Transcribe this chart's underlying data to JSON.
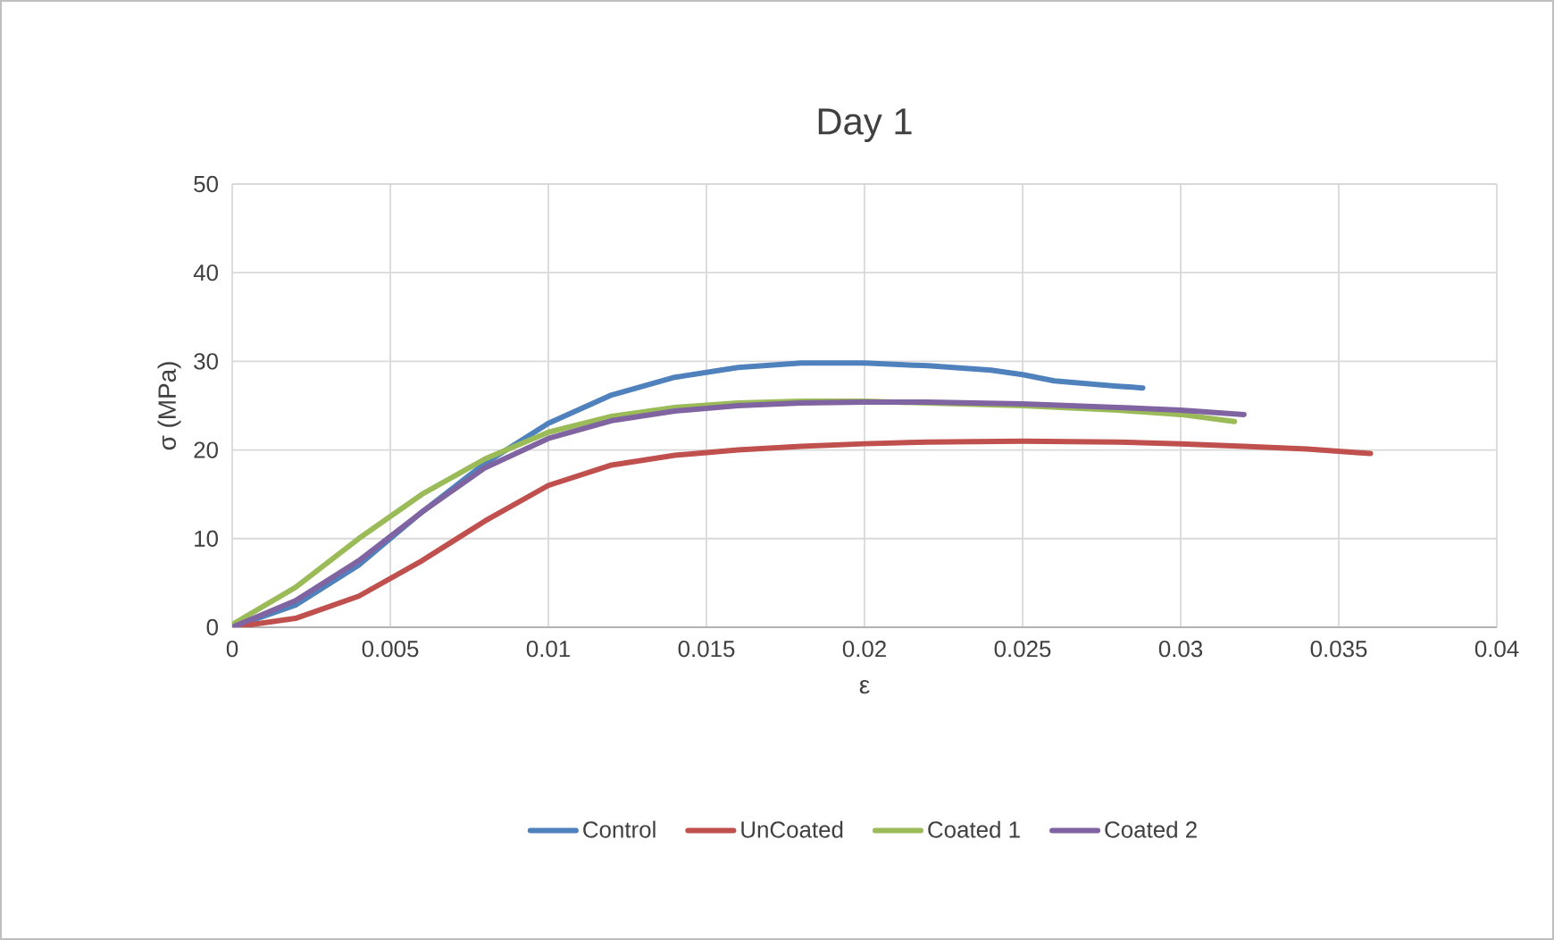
{
  "chart_data": {
    "type": "line",
    "title": "Day 1",
    "xlabel": "ε",
    "ylabel": "σ (MPa)",
    "xlim": [
      0,
      0.04
    ],
    "ylim": [
      0,
      50
    ],
    "xticks": [
      0,
      0.005,
      0.01,
      0.015,
      0.02,
      0.025,
      0.03,
      0.035,
      0.04
    ],
    "yticks": [
      0,
      10,
      20,
      30,
      40,
      50
    ],
    "grid": true,
    "legend": "bottom",
    "series": [
      {
        "name": "Control",
        "color": "#4f81bd",
        "x": [
          0,
          0.002,
          0.004,
          0.006,
          0.008,
          0.01,
          0.012,
          0.014,
          0.016,
          0.018,
          0.02,
          0.022,
          0.024,
          0.025,
          0.026,
          0.028,
          0.0288
        ],
        "values": [
          0,
          2.5,
          7,
          13,
          18.5,
          23,
          26.2,
          28.2,
          29.3,
          29.8,
          29.8,
          29.5,
          29,
          28.5,
          27.8,
          27.2,
          27
        ]
      },
      {
        "name": "UnCoated",
        "color": "#c0504d",
        "x": [
          0,
          0.002,
          0.004,
          0.006,
          0.008,
          0.01,
          0.012,
          0.014,
          0.016,
          0.018,
          0.02,
          0.022,
          0.025,
          0.028,
          0.03,
          0.032,
          0.034,
          0.036
        ],
        "values": [
          0,
          1,
          3.5,
          7.5,
          12,
          16,
          18.3,
          19.4,
          20,
          20.4,
          20.7,
          20.9,
          21,
          20.9,
          20.7,
          20.4,
          20.1,
          19.6
        ]
      },
      {
        "name": "Coated 1",
        "color": "#9bbb59",
        "x": [
          0,
          0.002,
          0.004,
          0.006,
          0.008,
          0.01,
          0.012,
          0.014,
          0.016,
          0.018,
          0.02,
          0.022,
          0.025,
          0.028,
          0.03,
          0.0317
        ],
        "values": [
          0.3,
          4.5,
          10,
          15,
          19,
          22,
          23.8,
          24.8,
          25.3,
          25.5,
          25.5,
          25.3,
          25,
          24.5,
          24,
          23.2
        ]
      },
      {
        "name": "Coated 2",
        "color": "#8064a2",
        "x": [
          0,
          0.002,
          0.004,
          0.006,
          0.008,
          0.01,
          0.012,
          0.014,
          0.016,
          0.018,
          0.02,
          0.022,
          0.025,
          0.028,
          0.03,
          0.032
        ],
        "values": [
          0,
          3,
          7.5,
          13,
          18,
          21.3,
          23.3,
          24.4,
          25,
          25.3,
          25.4,
          25.4,
          25.2,
          24.8,
          24.5,
          24
        ]
      }
    ]
  }
}
